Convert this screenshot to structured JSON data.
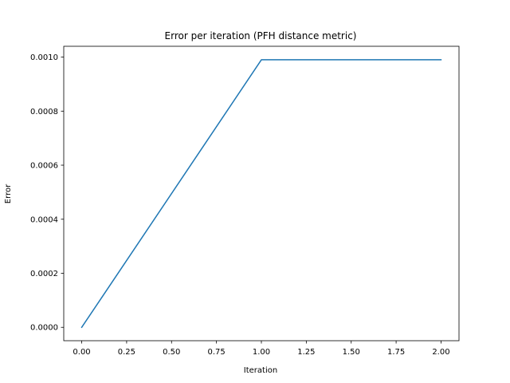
{
  "chart_data": {
    "type": "line",
    "title": "Error per iteration (PFH distance metric)",
    "xlabel": "Iteration",
    "ylabel": "Error",
    "xlim": [
      -0.1,
      2.1
    ],
    "ylim": [
      -4.95e-05,
      0.00104
    ],
    "x_ticks": [
      0.0,
      0.25,
      0.5,
      0.75,
      1.0,
      1.25,
      1.5,
      1.75,
      2.0
    ],
    "x_tick_labels": [
      "0.00",
      "0.25",
      "0.50",
      "0.75",
      "1.00",
      "1.25",
      "1.50",
      "1.75",
      "2.00"
    ],
    "y_ticks": [
      0.0,
      0.0002,
      0.0004,
      0.0006,
      0.0008,
      0.001
    ],
    "y_tick_labels": [
      "0.0000",
      "0.0002",
      "0.0004",
      "0.0006",
      "0.0008",
      "0.0010"
    ],
    "grid": false,
    "series": [
      {
        "x": [
          0,
          1,
          2
        ],
        "y": [
          0.0,
          0.00099,
          0.00099
        ],
        "color": "#1f77b4"
      }
    ]
  }
}
